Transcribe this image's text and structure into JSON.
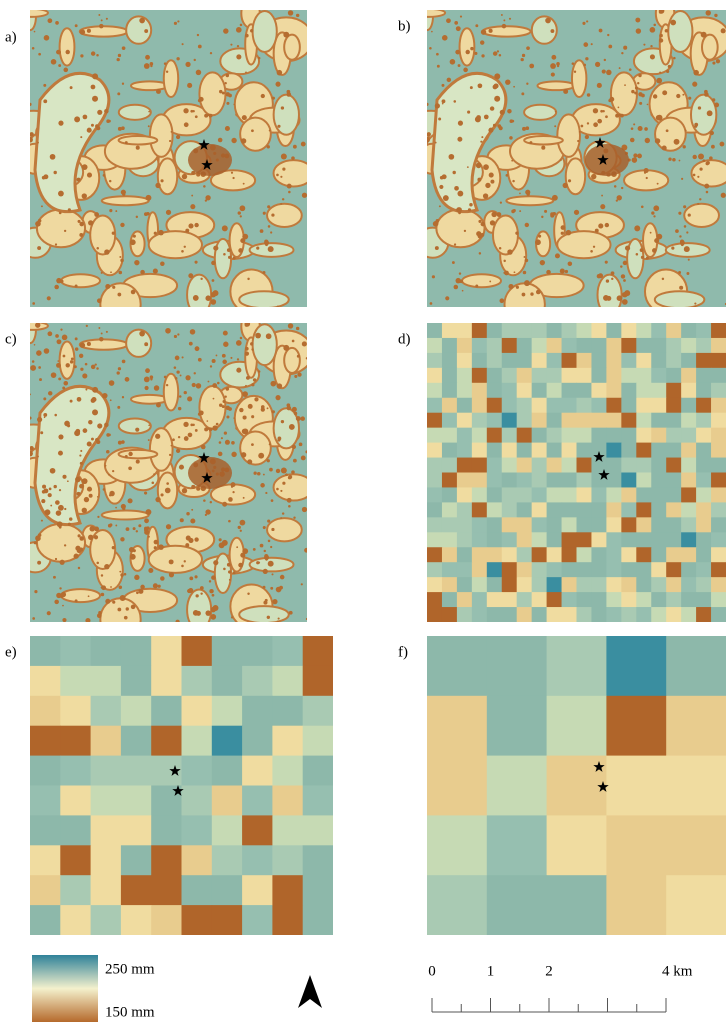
{
  "panels": [
    {
      "label": "a)"
    },
    {
      "label": "b)"
    },
    {
      "label": "c)"
    },
    {
      "label": "d)"
    },
    {
      "label": "e)"
    },
    {
      "label": "f)"
    }
  ],
  "legend": {
    "max": "250 mm",
    "min": "150 mm"
  },
  "scale_bar": {
    "labels": [
      "0",
      "1",
      "2",
      "4 km"
    ]
  }
}
